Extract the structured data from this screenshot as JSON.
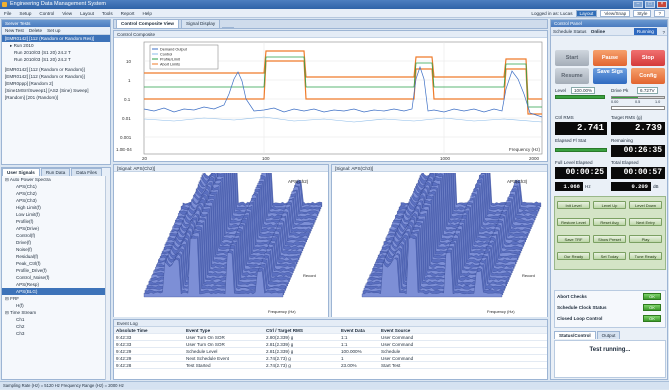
{
  "app": {
    "title": "Engineering Data Management System"
  },
  "menu": {
    "items": [
      "File",
      "Setup",
      "Control",
      "View",
      "Layout",
      "Tools",
      "Report",
      "Help"
    ],
    "login": "Logged in as: Lucas",
    "layout_btn": "Layout",
    "view_btn": "View/Snap",
    "style_btn": "Style"
  },
  "left_panel": {
    "title": "Server Tests",
    "toolbar": [
      "New Test",
      "Delete",
      "Set up"
    ],
    "tests": [
      {
        "label": "[EMR0142] [112 (Random or Random Res)]",
        "sub": [
          "Run 2010/03 (S1 20) 24.2 T",
          "Run 2010/03 (S1 20) 24.2 T"
        ]
      },
      {
        "label": "[EMR0142] [112 (Random or Random)]",
        "sub": []
      },
      {
        "label": "[EMR0142] [112 (Random or Random)]",
        "sub": []
      },
      {
        "label": "[EMR0ppp] [Random 2]",
        "sub": []
      },
      {
        "label": "[Sine1MSrr/Sweep1]  [AS2 (Sine) Sweep]",
        "sub": []
      },
      {
        "label": "[Random]  [201 (Random)]",
        "sub": []
      }
    ]
  },
  "signals_panel": {
    "tabs": [
      "User Signals",
      "Run Data",
      "Data Files"
    ],
    "root": "Auto Power Spectra",
    "items": [
      "APS(Ch1)",
      "APS(Ch2)",
      "APS(Ch3)",
      "High Limit(f)",
      "Low Limit(f)",
      "Profile(f)",
      "APS(Drive)",
      "Control(f)",
      "Drive(f)",
      "Noise(f)",
      "Residual(f)",
      "Peak_Ctrl(f)",
      "Profile_Drive(f)",
      "Control_Noise(f)",
      "APS(Resp)",
      "APS(BLG)"
    ],
    "other_roots": [
      "FRF",
      "Time Stream"
    ],
    "time_items": [
      "Ch1",
      "Ch2",
      "Ch3"
    ],
    "other_sub": "H(f)"
  },
  "doc_tabs": [
    "Control Composite View",
    "Signal Display"
  ],
  "top_plot": {
    "title": "Control Composite",
    "y_ticks": [
      "10",
      "1",
      "0.1",
      "0.01",
      "0.001",
      "1.0E-04",
      "1.00E-05"
    ],
    "x_ticks": [
      "20",
      "100",
      "1000",
      "2000"
    ],
    "xunit": "Frequency (Hz)",
    "legend": [
      "Demand Output",
      "Control",
      "Profile/Limit",
      "Abort Limits"
    ]
  },
  "waterfall_left": {
    "title": "[Signal: APS(Ch2)]",
    "legend": [
      "APS(Ch2)"
    ],
    "x_label": "Frequency (Hz)",
    "z_label": "Record"
  },
  "waterfall_right": {
    "title": "[Signal: APS(Ch3)]",
    "legend": [
      "APS(Ch3)"
    ],
    "x_label": "Frequency (Hz)",
    "z_label": "Record"
  },
  "log": {
    "title": "Event Log",
    "columns": [
      "Absolute Time",
      "Event Type",
      "Ctrl / Target RMS",
      "Event Data",
      "Event Source"
    ],
    "rows": [
      [
        "9:42:33",
        "User Turn On SOR",
        "2.80(2.339) g",
        "1:1",
        "User Command"
      ],
      [
        "9:42:33",
        "User Turn On SOR",
        "2.81(2.339) g",
        "1:1",
        "User Command"
      ],
      [
        "9:42:29",
        "Schedule Level",
        "2.81(2.339) g",
        "100.000%",
        "Schedule"
      ],
      [
        "9:42:29",
        "Next Schedule Event",
        "2.74(2.73) g",
        "1",
        "User Command"
      ],
      [
        "9:42:28",
        "Test Started",
        "2.74(2.73) g",
        "23.00%",
        "Start Test"
      ]
    ]
  },
  "control_panel": {
    "title": "Control Panel",
    "schedule_label": "Schedule Status",
    "schedule_value": "Online",
    "schedule_state": "Running",
    "buttons": {
      "start": "Start",
      "pause": "Pause",
      "stop": "Stop",
      "resume": "Resume",
      "save_sigs": "Save Sigs",
      "config": "Config"
    },
    "level_label": "Level",
    "level_value": "100.00%",
    "drive_pk_label": "Drive Pk",
    "drive_pk_value": "6.727V",
    "drive_scale": [
      "0.00",
      "0.5",
      "1.0"
    ],
    "ctrl_rms_label": "Ctrl RMS",
    "target_rms_label": "Target RMS (g)",
    "ctrl_rms": "2.741",
    "target_rms": "2.739",
    "elapsed_label": "Elapsed Fl Stat",
    "remaining_label": "Remaining",
    "remaining": "00:26:35",
    "full_elapsed_label": "Full Level Elapsed",
    "total_elapsed_label": "Total Elapsed",
    "full_elapsed": "00:00:25",
    "total_elapsed": "00:00:57",
    "small_val1": "1.068",
    "small_val2": "0.209",
    "unit1": "Hz",
    "unit2": "dB",
    "level_buttons": [
      "Init Level",
      "Level Up",
      "Level Down",
      "Restore Level",
      "Reset Avg",
      "Next Entry",
      "Save TRF",
      "Show Preset",
      "Play",
      "Our Ready",
      "Set Today",
      "Tune Ready"
    ],
    "status_items": [
      {
        "label": "Abort Checks",
        "state": "OK"
      },
      {
        "label": "Schedule Clock Status",
        "state": "OK"
      },
      {
        "label": "Closed Loop Control",
        "state": "OK"
      }
    ],
    "footer_tabs": [
      "Status/Control",
      "Output"
    ],
    "message": "Test running..."
  },
  "statusbar": {
    "text": "Sampling Rate (Hz) = 5120 Hz  Frequency Range (Hz) = 2000 Hz"
  },
  "colors": {
    "accent": "#2f6ac0",
    "orange": "#e2642f",
    "stop": "#d43a3a",
    "lcd": "#0a0a0a",
    "waterfall": "#4a5fb0"
  }
}
